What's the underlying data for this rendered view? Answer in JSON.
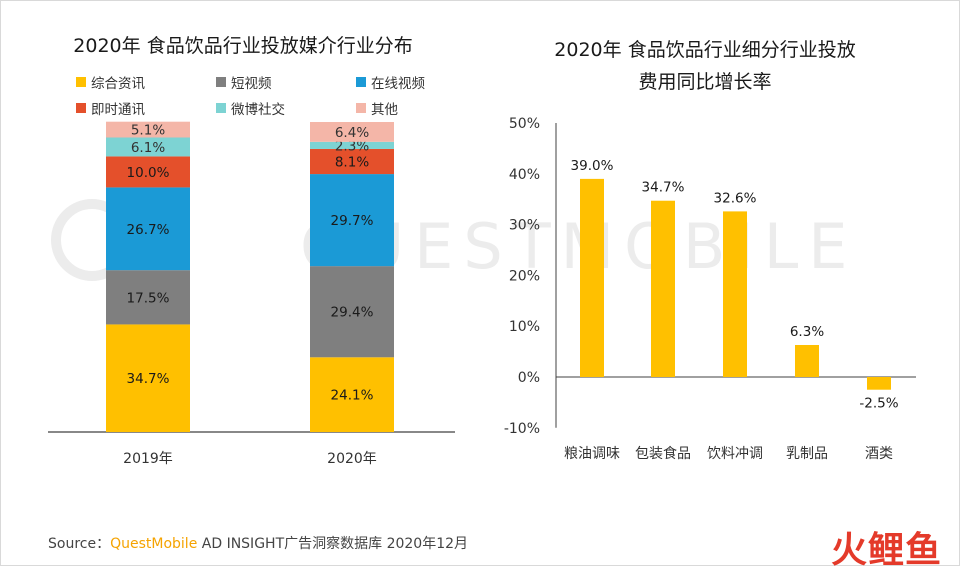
{
  "left_title": "2020年 食品饮品行业投放媒介行业分布",
  "right_title_line1": "2020年  食品饮品行业细分行业投放",
  "right_title_line2": "费用同比增长率",
  "footer": {
    "prefix": "Source：",
    "brand": "QuestMobile",
    "suffix": " AD INSIGHT广告洞察数据库 2020年12月"
  },
  "watermark": "QUESTMOBILE",
  "logo_text": "火鲤鱼",
  "chart_data": [
    {
      "type": "bar",
      "stacked": true,
      "title": "2020年 食品饮品行业投放媒介行业分布",
      "categories": [
        "2019年",
        "2020年"
      ],
      "ylim": [
        0,
        100
      ],
      "legend": "top",
      "series": [
        {
          "name": "综合资讯",
          "color": "#ffc000",
          "values": [
            34.7,
            24.1
          ],
          "labels": [
            "34.7%",
            "24.1%"
          ]
        },
        {
          "name": "短视频",
          "color": "#7f7f7f",
          "values": [
            17.5,
            29.4
          ],
          "labels": [
            "17.5%",
            "29.4%"
          ]
        },
        {
          "name": "在线视频",
          "color": "#1b9ad6",
          "values": [
            26.7,
            29.7
          ],
          "labels": [
            "26.7%",
            "29.7%"
          ]
        },
        {
          "name": "即时通讯",
          "color": "#e4502b",
          "values": [
            10.0,
            8.1
          ],
          "labels": [
            "10.0%",
            "8.1%"
          ]
        },
        {
          "name": "微博社交",
          "color": "#7dd3d3",
          "values": [
            6.1,
            2.3
          ],
          "labels": [
            "6.1%",
            "2.3%"
          ]
        },
        {
          "name": "其他",
          "color": "#f4b6a8",
          "values": [
            5.1,
            6.4
          ],
          "labels": [
            "5.1%",
            "6.4%"
          ]
        }
      ]
    },
    {
      "type": "bar",
      "title": "2020年  食品饮品行业细分行业投放费用同比增长率",
      "categories": [
        "粮油调味",
        "包装食品",
        "饮料冲调",
        "乳制品",
        "酒类"
      ],
      "values": [
        39.0,
        34.7,
        32.6,
        6.3,
        -2.5
      ],
      "labels": [
        "39.0%",
        "34.7%",
        "32.6%",
        "6.3%",
        "-2.5%"
      ],
      "ylim": [
        -10,
        50
      ],
      "yticks": [
        "-10%",
        "0%",
        "10%",
        "20%",
        "30%",
        "40%",
        "50%"
      ],
      "color": "#ffc000"
    }
  ]
}
